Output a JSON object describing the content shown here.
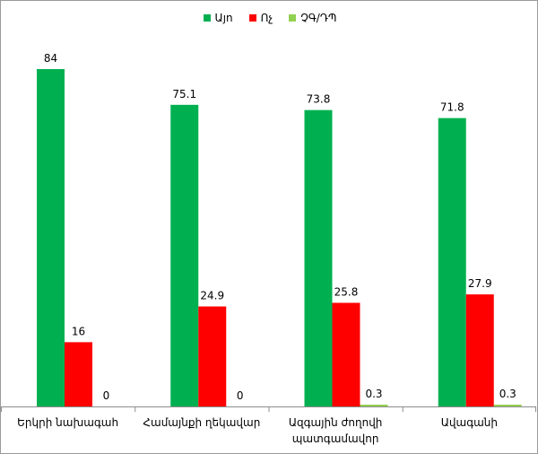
{
  "chart_data": {
    "type": "bar",
    "categories": [
      "Երկրի նախագահ",
      "Համայնքի ղեկավար",
      "Ազգային ժողովի պատգամավոր",
      "Ավագանի"
    ],
    "category_lines": [
      [
        "Երկրի նախագահ"
      ],
      [
        "Համայնքի ղեկավար"
      ],
      [
        "Ազգային ժողովի",
        "պատգամավոր"
      ],
      [
        "Ավագանի"
      ]
    ],
    "series": [
      {
        "name": "Այո",
        "color": "#00b050",
        "values": [
          84,
          75.1,
          73.8,
          71.8
        ],
        "labels": [
          "84",
          "75.1",
          "73.8",
          "71.8"
        ]
      },
      {
        "name": "Ոչ",
        "color": "#ff0000",
        "values": [
          16,
          24.9,
          25.8,
          27.9
        ],
        "labels": [
          "16",
          "24.9",
          "25.8",
          "27.9"
        ]
      },
      {
        "name": "ՉԳ/ԴՊ",
        "color": "#92d050",
        "values": [
          0,
          0,
          0.3,
          0.3
        ],
        "labels": [
          "0",
          "0",
          "0.3",
          "0.3"
        ]
      }
    ],
    "ylim": [
      0,
      84
    ],
    "grid": false,
    "legend_position": "top",
    "title": "",
    "xlabel": "",
    "ylabel": ""
  }
}
